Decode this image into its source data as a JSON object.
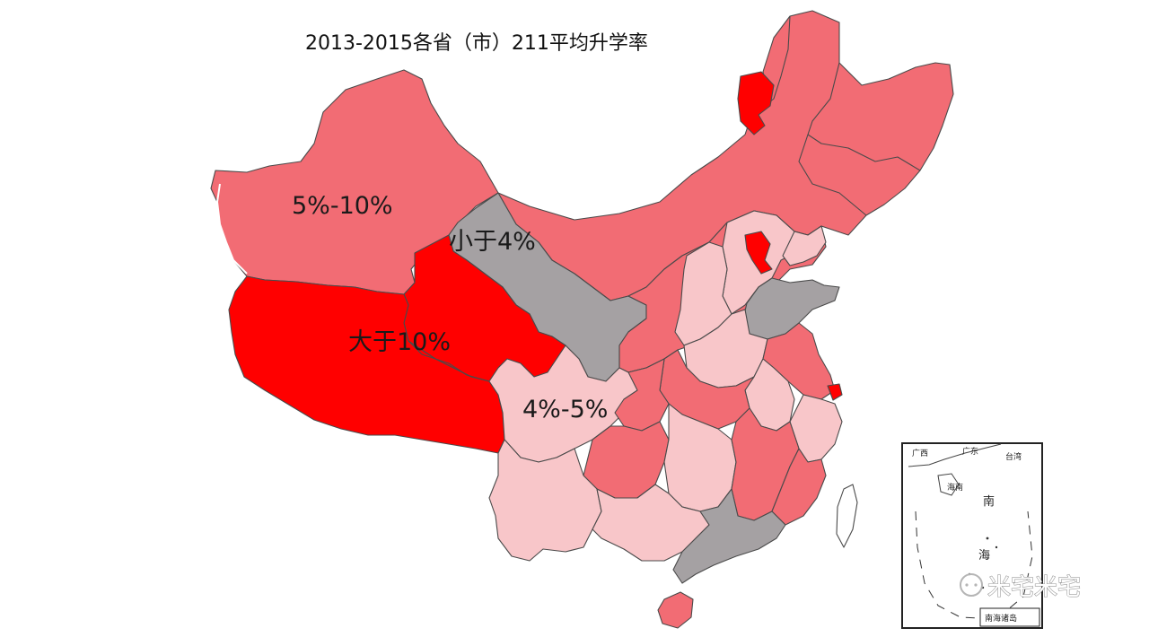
{
  "title": "2013-2015各省（市）211平均升学率",
  "legend_categories": [
    {
      "label": "大于10%",
      "color": "#ff0000"
    },
    {
      "label": "5%-10%",
      "color": "#f26c74"
    },
    {
      "label": "4%-5%",
      "color": "#f8c6c9"
    },
    {
      "label": "小于4%",
      "color": "#a5a1a3"
    }
  ],
  "colors": {
    "gt10": "#ff0000",
    "mid": "#f26c74",
    "light": "#f8c6c9",
    "grey": "#a5a1a3",
    "border": "#4a4a4a",
    "background": "#ffffff"
  },
  "inset": {
    "labels": [
      "广西",
      "广东",
      "台湾",
      "海南",
      "南",
      "海",
      "南海诸岛"
    ]
  },
  "watermark": "米宅米宅"
}
